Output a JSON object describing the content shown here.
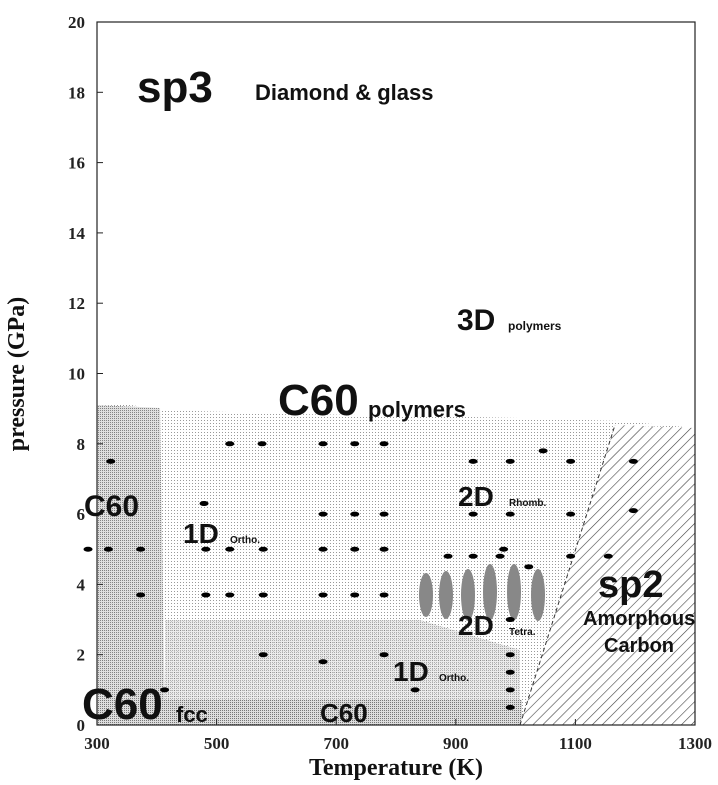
{
  "chart_data": {
    "type": "scatter",
    "x_label": "Temperature (K)",
    "y_label": "pressure (GPa)",
    "xlim": [
      300,
      1300
    ],
    "ylim": [
      0,
      20
    ],
    "xticks": [
      300,
      500,
      700,
      900,
      1100,
      1300
    ],
    "yticks": [
      0,
      2,
      4,
      6,
      8,
      10,
      12,
      14,
      16,
      18,
      20
    ],
    "color": "#000000",
    "x": [
      323,
      522,
      576,
      678,
      731,
      780,
      479,
      678,
      731,
      780,
      929,
      1092,
      285,
      319,
      373,
      482,
      522,
      578,
      678,
      731,
      780,
      373,
      482,
      522,
      578,
      678,
      731,
      780,
      578,
      678,
      780,
      413,
      929,
      991,
      1092,
      1197,
      1046,
      991,
      1197,
      887,
      929,
      974,
      980,
      1092,
      1022,
      1155,
      832,
      991,
      991,
      991,
      991,
      991
    ],
    "y": [
      7.5,
      8.0,
      8.0,
      8.0,
      8.0,
      8.0,
      6.3,
      6.0,
      6.0,
      6.0,
      6.0,
      6.0,
      5.0,
      5.0,
      5.0,
      5.0,
      5.0,
      5.0,
      5.0,
      5.0,
      5.0,
      3.7,
      3.7,
      3.7,
      3.7,
      3.7,
      3.7,
      3.7,
      2.0,
      1.8,
      2.0,
      1.0,
      7.5,
      7.5,
      7.5,
      7.5,
      7.8,
      6.0,
      6.1,
      4.8,
      4.8,
      4.8,
      5.0,
      4.8,
      4.5,
      4.8,
      1.0,
      2.0,
      1.5,
      1.0,
      0.5,
      3.0
    ],
    "annotations": [
      "sp3",
      "Diamond & glass",
      "3D",
      "polymers",
      "C60",
      "polymers",
      "C60",
      "1D",
      "Ortho.",
      "2D",
      "Rhomb.",
      "2D",
      "Tetra.",
      "sp2",
      "Amorphous",
      "Carbon",
      "1D",
      "Ortho.",
      "C60",
      "fcc",
      "C60"
    ]
  }
}
